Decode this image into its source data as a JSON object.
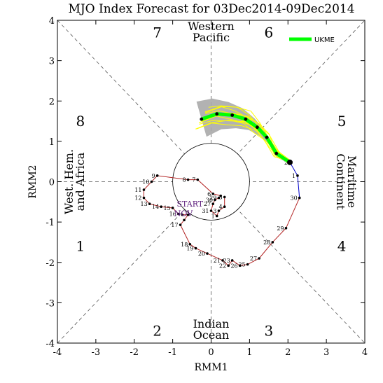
{
  "chart_data": {
    "type": "line",
    "title": "MJO Index Forecast for 03Dec2014-09Dec2014",
    "xlabel": "RMM1",
    "ylabel": "RMM2",
    "xlim": [
      -4,
      4
    ],
    "ylim": [
      -4,
      4
    ],
    "xticks": [
      "-4",
      "-3",
      "-2",
      "-1",
      "0",
      "1",
      "2",
      "3",
      "4"
    ],
    "yticks": [
      "-4",
      "-3",
      "-2",
      "-1",
      "0",
      "1",
      "2",
      "3",
      "4"
    ],
    "grid": false,
    "legend_position": "top-right",
    "phases": [
      {
        "label": "1",
        "x": -3.4,
        "y": -1.6
      },
      {
        "label": "2",
        "x": -1.4,
        "y": -3.7
      },
      {
        "label": "3",
        "x": 1.5,
        "y": -3.7
      },
      {
        "label": "4",
        "x": 3.4,
        "y": -1.6
      },
      {
        "label": "5",
        "x": 3.4,
        "y": 1.5
      },
      {
        "label": "6",
        "x": 1.5,
        "y": 3.7
      },
      {
        "label": "7",
        "x": -1.4,
        "y": 3.7
      },
      {
        "label": "8",
        "x": -3.4,
        "y": 1.5
      }
    ],
    "regions": {
      "top": [
        "Western",
        "Pacific"
      ],
      "bottom": [
        "Indian",
        "Ocean"
      ],
      "left": [
        "West. Hem.",
        "and Africa"
      ],
      "right": [
        "Maritime",
        "Continent"
      ]
    },
    "start_label": [
      "START",
      "NOV"
    ],
    "series": [
      {
        "name": "",
        "color": "#b22222",
        "points": [
          {
            "x": -0.75,
            "y": -0.82,
            "label": ""
          },
          {
            "x": -0.6,
            "y": -0.82,
            "label": ""
          },
          {
            "x": -0.7,
            "y": -0.95,
            "label": ""
          },
          {
            "x": -0.8,
            "y": -1.07,
            "label": "17"
          },
          {
            "x": -0.55,
            "y": -1.55,
            "label": "18"
          },
          {
            "x": -0.4,
            "y": -1.65,
            "label": "19"
          },
          {
            "x": -0.1,
            "y": -1.78,
            "label": "20"
          },
          {
            "x": 0.3,
            "y": -1.95,
            "label": "21"
          },
          {
            "x": 0.45,
            "y": -2.08,
            "label": "22"
          },
          {
            "x": 0.55,
            "y": -1.95,
            "label": "23"
          },
          {
            "x": 0.75,
            "y": -2.08,
            "label": "26"
          },
          {
            "x": 0.95,
            "y": -2.05,
            "label": "25"
          },
          {
            "x": 1.25,
            "y": -1.9,
            "label": "27"
          },
          {
            "x": 1.6,
            "y": -1.5,
            "label": "28"
          },
          {
            "x": 1.95,
            "y": -1.15,
            "label": "29"
          },
          {
            "x": 2.3,
            "y": -0.4,
            "label": "30"
          }
        ]
      },
      {
        "name": "",
        "color": "#b22222",
        "points": [
          {
            "x": 0.25,
            "y": -0.35,
            "label": ""
          },
          {
            "x": 0.05,
            "y": -0.3,
            "label": "6"
          },
          {
            "x": -0.35,
            "y": 0.05,
            "label": "7"
          },
          {
            "x": -0.6,
            "y": 0.05,
            "label": "8"
          },
          {
            "x": -1.4,
            "y": 0.15,
            "label": "9"
          },
          {
            "x": -1.55,
            "y": 0.0,
            "label": "10"
          },
          {
            "x": -1.75,
            "y": -0.2,
            "label": "11"
          },
          {
            "x": -1.75,
            "y": -0.4,
            "label": "12"
          },
          {
            "x": -1.6,
            "y": -0.55,
            "label": "13"
          },
          {
            "x": -1.3,
            "y": -0.62,
            "label": "14"
          },
          {
            "x": -1.0,
            "y": -0.65,
            "label": "15"
          },
          {
            "x": -0.85,
            "y": -0.8,
            "label": "16"
          }
        ]
      },
      {
        "name": "",
        "color": "#b22222",
        "points": [
          {
            "x": 0.35,
            "y": -0.38,
            "label": "5"
          },
          {
            "x": 0.35,
            "y": -0.62,
            "label": "4"
          },
          {
            "x": 0.2,
            "y": -0.72,
            "label": "3"
          },
          {
            "x": 0.15,
            "y": -0.85,
            "label": "1"
          },
          {
            "x": 0.0,
            "y": -0.72,
            "label": "31"
          },
          {
            "x": 0.05,
            "y": -0.55,
            "label": "27"
          },
          {
            "x": 0.1,
            "y": -0.45,
            "label": "30"
          },
          {
            "x": 0.2,
            "y": -0.4,
            "label": "29"
          }
        ]
      },
      {
        "name": "",
        "color": "#0000cd",
        "points": [
          {
            "x": 2.3,
            "y": -0.4,
            "label": ""
          },
          {
            "x": 2.25,
            "y": 0.15,
            "label": "1"
          },
          {
            "x": 2.05,
            "y": 0.48,
            "label": "2"
          }
        ]
      },
      {
        "name": "UKME",
        "color": "#00ff00",
        "points": [
          {
            "x": 2.05,
            "y": 0.48,
            "label": ""
          },
          {
            "x": 1.7,
            "y": 0.7,
            "label": ""
          },
          {
            "x": 1.45,
            "y": 1.1,
            "label": ""
          },
          {
            "x": 1.2,
            "y": 1.35,
            "label": ""
          },
          {
            "x": 0.9,
            "y": 1.55,
            "label": ""
          },
          {
            "x": 0.55,
            "y": 1.65,
            "label": ""
          },
          {
            "x": 0.15,
            "y": 1.68,
            "label": ""
          },
          {
            "x": -0.25,
            "y": 1.55,
            "label": ""
          }
        ]
      }
    ]
  }
}
